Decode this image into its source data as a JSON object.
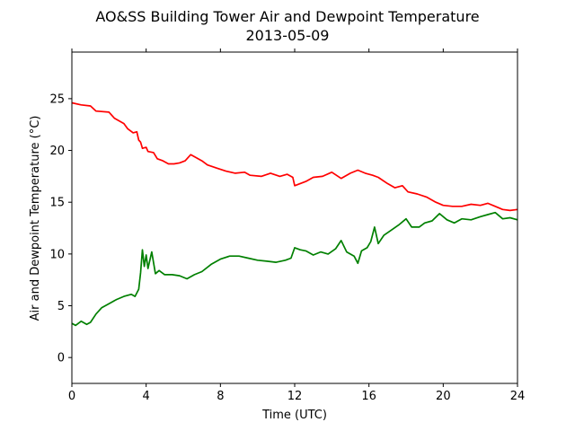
{
  "chart_data": {
    "type": "line",
    "title": "AO&SS Building Tower Air and Dewpoint Temperature",
    "subtitle": "2013-05-09",
    "xlabel": "Time (UTC)",
    "ylabel": "Air and Dewpoint Temperature (°C)",
    "xlim": [
      0,
      24
    ],
    "ylim": [
      -2.5,
      29.5
    ],
    "xticks": [
      0,
      4,
      8,
      12,
      16,
      20,
      24
    ],
    "yticks": [
      0,
      5,
      10,
      15,
      20,
      25
    ],
    "grid": false,
    "series": [
      {
        "color": "#ff0000",
        "points": [
          [
            0,
            24.6
          ],
          [
            0.5,
            24.4
          ],
          [
            1.0,
            24.3
          ],
          [
            1.3,
            23.8
          ],
          [
            2.0,
            23.7
          ],
          [
            2.3,
            23.1
          ],
          [
            2.8,
            22.6
          ],
          [
            3.0,
            22.1
          ],
          [
            3.3,
            21.7
          ],
          [
            3.5,
            21.8
          ],
          [
            3.6,
            21.0
          ],
          [
            3.7,
            20.8
          ],
          [
            3.8,
            20.2
          ],
          [
            4.0,
            20.3
          ],
          [
            4.1,
            19.9
          ],
          [
            4.4,
            19.8
          ],
          [
            4.6,
            19.2
          ],
          [
            4.9,
            19.0
          ],
          [
            5.2,
            18.7
          ],
          [
            5.5,
            18.7
          ],
          [
            5.8,
            18.8
          ],
          [
            6.1,
            19.0
          ],
          [
            6.4,
            19.6
          ],
          [
            6.6,
            19.4
          ],
          [
            7.0,
            19.0
          ],
          [
            7.3,
            18.6
          ],
          [
            7.8,
            18.3
          ],
          [
            8.3,
            18.0
          ],
          [
            8.8,
            17.8
          ],
          [
            9.3,
            17.9
          ],
          [
            9.6,
            17.6
          ],
          [
            10.2,
            17.5
          ],
          [
            10.7,
            17.8
          ],
          [
            11.2,
            17.5
          ],
          [
            11.6,
            17.7
          ],
          [
            11.9,
            17.4
          ],
          [
            12.0,
            16.6
          ],
          [
            12.3,
            16.8
          ],
          [
            12.6,
            17.0
          ],
          [
            13.0,
            17.4
          ],
          [
            13.5,
            17.5
          ],
          [
            14.0,
            17.9
          ],
          [
            14.5,
            17.3
          ],
          [
            15.0,
            17.8
          ],
          [
            15.4,
            18.1
          ],
          [
            15.8,
            17.8
          ],
          [
            16.2,
            17.6
          ],
          [
            16.5,
            17.4
          ],
          [
            17.0,
            16.8
          ],
          [
            17.4,
            16.4
          ],
          [
            17.8,
            16.6
          ],
          [
            18.1,
            16.0
          ],
          [
            18.6,
            15.8
          ],
          [
            19.1,
            15.5
          ],
          [
            19.6,
            15.0
          ],
          [
            20.0,
            14.7
          ],
          [
            20.5,
            14.6
          ],
          [
            21.0,
            14.6
          ],
          [
            21.5,
            14.8
          ],
          [
            22.0,
            14.7
          ],
          [
            22.4,
            14.9
          ],
          [
            22.8,
            14.6
          ],
          [
            23.2,
            14.3
          ],
          [
            23.6,
            14.2
          ],
          [
            24.0,
            14.3
          ]
        ]
      },
      {
        "color": "#008000",
        "points": [
          [
            0,
            3.3
          ],
          [
            0.2,
            3.1
          ],
          [
            0.5,
            3.5
          ],
          [
            0.8,
            3.2
          ],
          [
            1.0,
            3.4
          ],
          [
            1.3,
            4.2
          ],
          [
            1.6,
            4.8
          ],
          [
            2.0,
            5.2
          ],
          [
            2.4,
            5.6
          ],
          [
            2.8,
            5.9
          ],
          [
            3.2,
            6.1
          ],
          [
            3.4,
            5.9
          ],
          [
            3.6,
            6.6
          ],
          [
            3.7,
            8.2
          ],
          [
            3.8,
            10.4
          ],
          [
            3.9,
            8.8
          ],
          [
            4.0,
            9.9
          ],
          [
            4.1,
            8.6
          ],
          [
            4.3,
            10.2
          ],
          [
            4.5,
            8.1
          ],
          [
            4.7,
            8.4
          ],
          [
            5.0,
            8.0
          ],
          [
            5.4,
            8.0
          ],
          [
            5.8,
            7.9
          ],
          [
            6.2,
            7.6
          ],
          [
            6.6,
            8.0
          ],
          [
            7.0,
            8.3
          ],
          [
            7.5,
            9.0
          ],
          [
            8.0,
            9.5
          ],
          [
            8.5,
            9.8
          ],
          [
            9.0,
            9.8
          ],
          [
            9.5,
            9.6
          ],
          [
            10.0,
            9.4
          ],
          [
            10.5,
            9.3
          ],
          [
            11.0,
            9.2
          ],
          [
            11.5,
            9.4
          ],
          [
            11.8,
            9.6
          ],
          [
            12.0,
            10.6
          ],
          [
            12.3,
            10.4
          ],
          [
            12.6,
            10.3
          ],
          [
            13.0,
            9.9
          ],
          [
            13.4,
            10.2
          ],
          [
            13.8,
            10.0
          ],
          [
            14.2,
            10.5
          ],
          [
            14.5,
            11.3
          ],
          [
            14.8,
            10.2
          ],
          [
            15.2,
            9.8
          ],
          [
            15.4,
            9.1
          ],
          [
            15.6,
            10.3
          ],
          [
            15.9,
            10.6
          ],
          [
            16.1,
            11.2
          ],
          [
            16.3,
            12.6
          ],
          [
            16.5,
            11.0
          ],
          [
            16.8,
            11.8
          ],
          [
            17.2,
            12.3
          ],
          [
            17.6,
            12.8
          ],
          [
            18.0,
            13.4
          ],
          [
            18.3,
            12.6
          ],
          [
            18.7,
            12.6
          ],
          [
            19.0,
            13.0
          ],
          [
            19.4,
            13.2
          ],
          [
            19.8,
            13.9
          ],
          [
            20.2,
            13.3
          ],
          [
            20.6,
            13.0
          ],
          [
            21.0,
            13.4
          ],
          [
            21.5,
            13.3
          ],
          [
            22.0,
            13.6
          ],
          [
            22.4,
            13.8
          ],
          [
            22.8,
            14.0
          ],
          [
            23.2,
            13.4
          ],
          [
            23.6,
            13.5
          ],
          [
            24.0,
            13.3
          ]
        ]
      }
    ]
  }
}
